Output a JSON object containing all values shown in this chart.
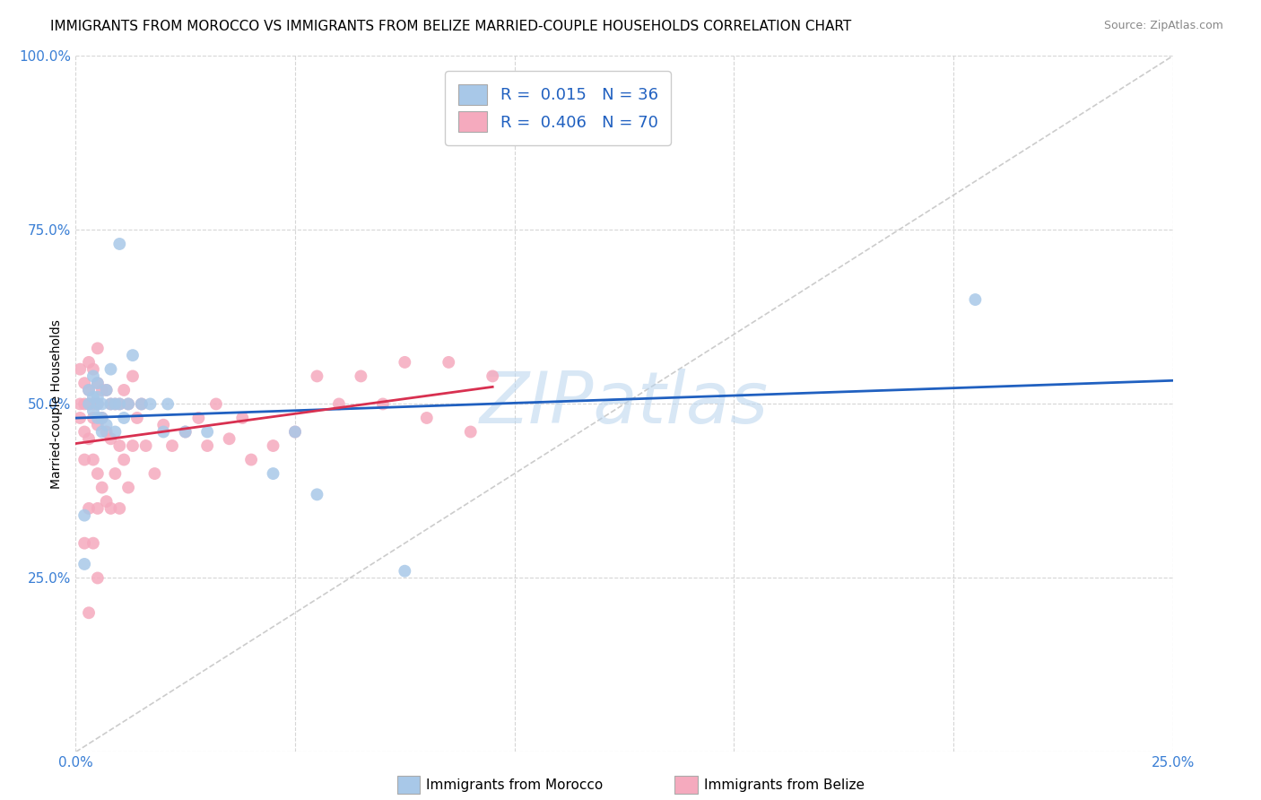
{
  "title": "IMMIGRANTS FROM MOROCCO VS IMMIGRANTS FROM BELIZE MARRIED-COUPLE HOUSEHOLDS CORRELATION CHART",
  "source": "Source: ZipAtlas.com",
  "ylabel": "Married-couple Households",
  "xlim": [
    0.0,
    0.25
  ],
  "ylim": [
    0.0,
    1.0
  ],
  "yticks": [
    0.0,
    0.25,
    0.5,
    0.75,
    1.0
  ],
  "ytick_labels": [
    "",
    "25.0%",
    "50.0%",
    "75.0%",
    "100.0%"
  ],
  "xticks": [
    0.0,
    0.05,
    0.1,
    0.15,
    0.2,
    0.25
  ],
  "xtick_labels": [
    "0.0%",
    "",
    "",
    "",
    "",
    "25.0%"
  ],
  "watermark": "ZIPatlas",
  "morocco_color": "#a8c8e8",
  "belize_color": "#f5aabe",
  "morocco_line_color": "#2060c0",
  "belize_line_color": "#d83050",
  "diagonal_color": "#cccccc",
  "morocco_scatter_x": [
    0.002,
    0.002,
    0.003,
    0.003,
    0.004,
    0.004,
    0.004,
    0.005,
    0.005,
    0.005,
    0.005,
    0.006,
    0.006,
    0.006,
    0.007,
    0.007,
    0.008,
    0.008,
    0.009,
    0.009,
    0.01,
    0.01,
    0.011,
    0.012,
    0.013,
    0.015,
    0.017,
    0.02,
    0.021,
    0.025,
    0.03,
    0.045,
    0.05,
    0.055,
    0.075,
    0.205
  ],
  "morocco_scatter_y": [
    0.27,
    0.34,
    0.5,
    0.52,
    0.49,
    0.51,
    0.54,
    0.48,
    0.5,
    0.51,
    0.53,
    0.46,
    0.48,
    0.5,
    0.47,
    0.52,
    0.5,
    0.55,
    0.46,
    0.5,
    0.5,
    0.73,
    0.48,
    0.5,
    0.57,
    0.5,
    0.5,
    0.46,
    0.5,
    0.46,
    0.46,
    0.4,
    0.46,
    0.37,
    0.26,
    0.65
  ],
  "belize_scatter_x": [
    0.001,
    0.001,
    0.001,
    0.002,
    0.002,
    0.002,
    0.002,
    0.002,
    0.003,
    0.003,
    0.003,
    0.003,
    0.003,
    0.003,
    0.004,
    0.004,
    0.004,
    0.004,
    0.004,
    0.005,
    0.005,
    0.005,
    0.005,
    0.005,
    0.005,
    0.005,
    0.006,
    0.006,
    0.006,
    0.007,
    0.007,
    0.007,
    0.008,
    0.008,
    0.008,
    0.009,
    0.009,
    0.01,
    0.01,
    0.01,
    0.011,
    0.011,
    0.012,
    0.012,
    0.013,
    0.013,
    0.014,
    0.015,
    0.016,
    0.018,
    0.02,
    0.022,
    0.025,
    0.028,
    0.03,
    0.032,
    0.035,
    0.038,
    0.04,
    0.045,
    0.05,
    0.055,
    0.06,
    0.065,
    0.07,
    0.075,
    0.08,
    0.085,
    0.09,
    0.095
  ],
  "belize_scatter_y": [
    0.48,
    0.5,
    0.55,
    0.3,
    0.42,
    0.46,
    0.5,
    0.53,
    0.2,
    0.35,
    0.45,
    0.5,
    0.52,
    0.56,
    0.3,
    0.42,
    0.48,
    0.5,
    0.55,
    0.25,
    0.35,
    0.4,
    0.47,
    0.5,
    0.53,
    0.58,
    0.38,
    0.48,
    0.52,
    0.36,
    0.46,
    0.52,
    0.35,
    0.45,
    0.5,
    0.4,
    0.5,
    0.35,
    0.44,
    0.5,
    0.42,
    0.52,
    0.38,
    0.5,
    0.44,
    0.54,
    0.48,
    0.5,
    0.44,
    0.4,
    0.47,
    0.44,
    0.46,
    0.48,
    0.44,
    0.5,
    0.45,
    0.48,
    0.42,
    0.44,
    0.46,
    0.54,
    0.5,
    0.54,
    0.5,
    0.56,
    0.48,
    0.56,
    0.46,
    0.54
  ],
  "belize_line_x": [
    0.0,
    0.095
  ],
  "morocco_line_x": [
    0.0,
    0.25
  ]
}
